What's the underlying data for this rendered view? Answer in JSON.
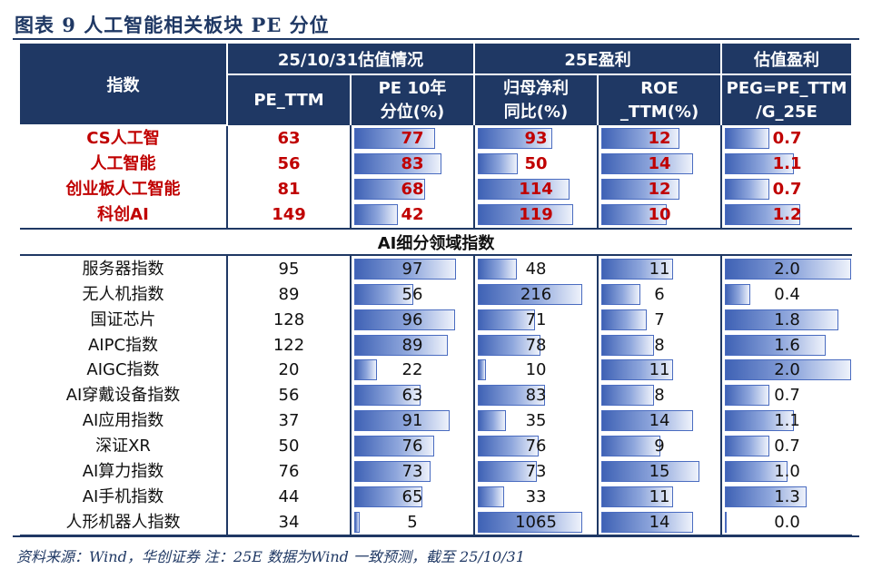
{
  "title": "图表 9   人工智能相关板块 PE 分位",
  "header": {
    "index_label": "指数",
    "group_valuation": "25/10/31估值情况",
    "group_profit": "25E盈利",
    "group_val_profit": "估值盈利",
    "col_pe": "PE_TTM",
    "col_pe_pct_1": "PE 10年",
    "col_pe_pct_2": "分位(%)",
    "col_yoy_1": "归母净利",
    "col_yoy_2": "同比(%)",
    "col_roe_1": "ROE",
    "col_roe_2": "_TTM(%)",
    "col_peg_1": "PEG=PE_TTM",
    "col_peg_2": "/G_25E"
  },
  "subheader": "AI细分领域指数",
  "rows_top": [
    {
      "name": "CS人工智",
      "pe": "63",
      "pct": "77",
      "yoy": "93",
      "roe": "12",
      "peg": "0.7"
    },
    {
      "name": "人工智能",
      "pe": "56",
      "pct": "83",
      "yoy": "50",
      "roe": "14",
      "peg": "1.1"
    },
    {
      "name": "创业板人工智能",
      "pe": "81",
      "pct": "68",
      "yoy": "114",
      "roe": "12",
      "peg": "0.7"
    },
    {
      "name": "科创AI",
      "pe": "149",
      "pct": "42",
      "yoy": "119",
      "roe": "10",
      "peg": "1.2"
    }
  ],
  "rows_sub": [
    {
      "name": "服务器指数",
      "pe": "95",
      "pct": "97",
      "yoy": "48",
      "roe": "11",
      "peg": "2.0"
    },
    {
      "name": "无人机指数",
      "pe": "89",
      "pct": "56",
      "yoy": "216",
      "roe": "6",
      "peg": "0.4"
    },
    {
      "name": "国证芯片",
      "pe": "128",
      "pct": "96",
      "yoy": "71",
      "roe": "7",
      "peg": "1.8"
    },
    {
      "name": "AIPC指数",
      "pe": "122",
      "pct": "89",
      "yoy": "78",
      "roe": "8",
      "peg": "1.6"
    },
    {
      "name": "AIGC指数",
      "pe": "20",
      "pct": "22",
      "yoy": "10",
      "roe": "11",
      "peg": "2.0"
    },
    {
      "name": "AI穿戴设备指数",
      "pe": "56",
      "pct": "63",
      "yoy": "83",
      "roe": "8",
      "peg": "0.7"
    },
    {
      "name": "AI应用指数",
      "pe": "37",
      "pct": "91",
      "yoy": "35",
      "roe": "14",
      "peg": "1.1"
    },
    {
      "name": "深证XR",
      "pe": "50",
      "pct": "76",
      "yoy": "76",
      "roe": "9",
      "peg": "0.7"
    },
    {
      "name": "AI算力指数",
      "pe": "76",
      "pct": "73",
      "yoy": "73",
      "roe": "15",
      "peg": "1.0"
    },
    {
      "name": "AI手机指数",
      "pe": "44",
      "pct": "65",
      "yoy": "33",
      "roe": "11",
      "peg": "1.3"
    },
    {
      "name": "人形机器人指数",
      "pe": "34",
      "pct": "5",
      "yoy": "1065",
      "roe": "14",
      "peg": "0.0"
    }
  ],
  "source": "资料来源：Wind，华创证券   注：25E 数据为Wind 一致预测，截至 25/10/31",
  "colors": {
    "header_bg": "#1f3864",
    "highlight_text": "#c00000",
    "bar": "#4a6cc0"
  }
}
